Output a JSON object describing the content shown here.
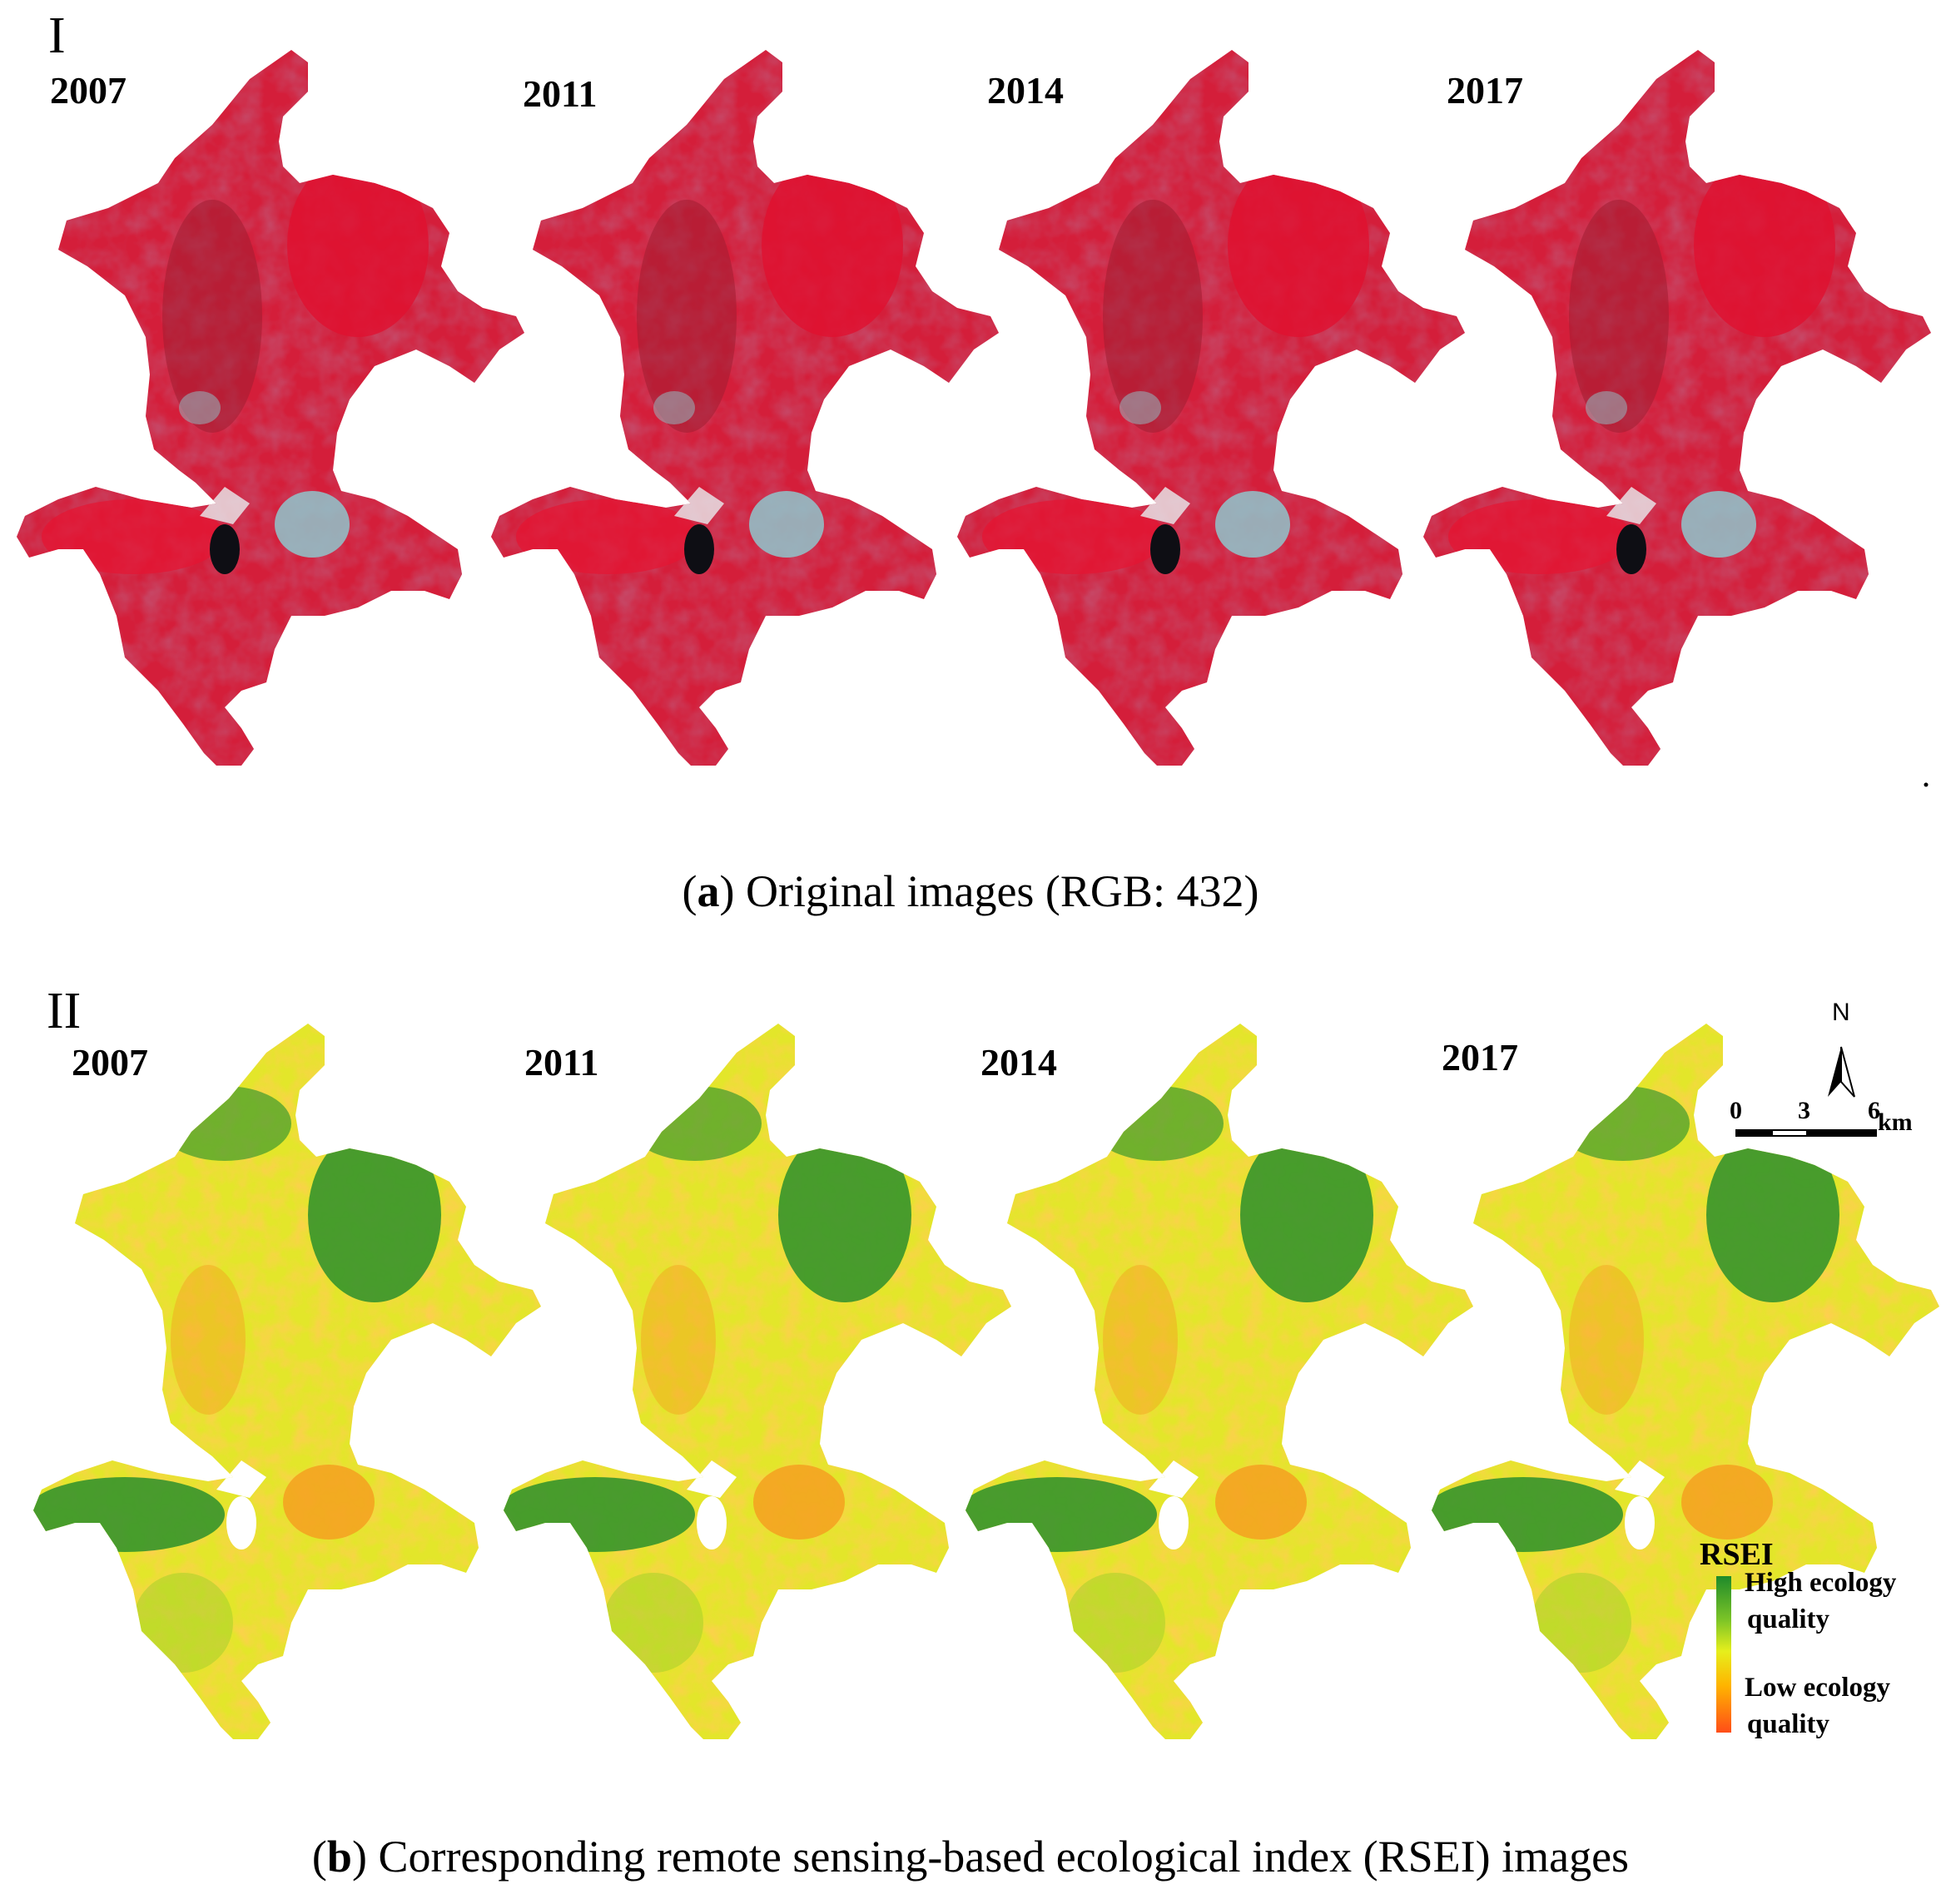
{
  "panel_a": {
    "roman": "I",
    "years": [
      "2007",
      "2011",
      "2014",
      "2017"
    ],
    "caption_letter": "a",
    "caption_text": " Original images (RGB: 432)"
  },
  "panel_b": {
    "roman": "II",
    "years": [
      "2007",
      "2011",
      "2014",
      "2017"
    ],
    "caption_letter": "b",
    "caption_text": " Corresponding remote sensing-based ecological index (RSEI) images"
  },
  "north_arrow": {
    "label": "N"
  },
  "scale_bar": {
    "ticks": [
      "0",
      "3",
      "6"
    ],
    "unit": "km"
  },
  "legend": {
    "title": "RSEI",
    "high_label_1": "High ecology",
    "high_label_2": "quality",
    "low_label_1": "Low ecology",
    "low_label_2": "quality",
    "colors": [
      "#1e8a2a",
      "#7cc427",
      "#e6ef1c",
      "#ffb400",
      "#ff4d18"
    ]
  },
  "image_colors": {
    "false_color_red": "#d41e3a",
    "false_color_dark": "#8e1730",
    "urban_cyan": "#8fc6cc",
    "water_black": "#0e0e14",
    "rsei_green": "#2b8f2c",
    "rsei_yellow": "#e3e62a",
    "rsei_orange": "#f4a020"
  }
}
